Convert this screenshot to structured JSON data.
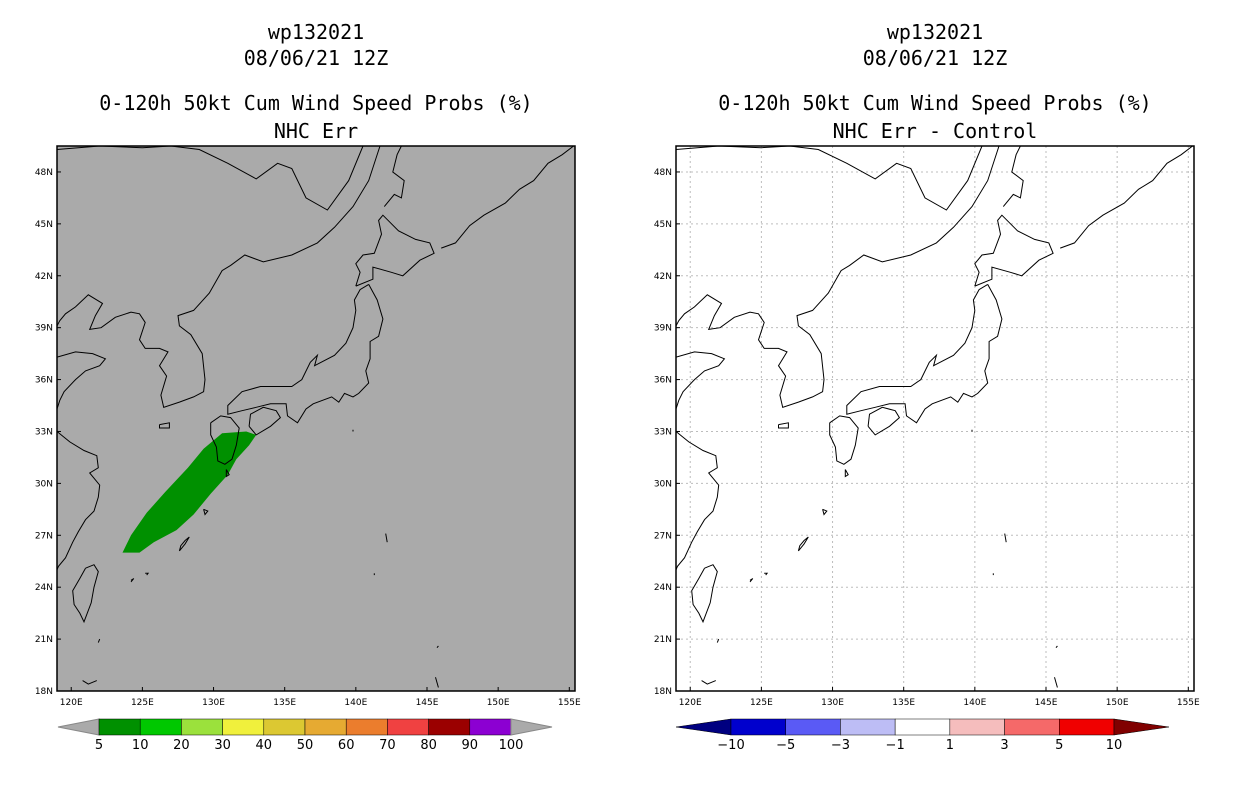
{
  "left": {
    "storm": "wp132021",
    "datetime": "08/06/21 12Z",
    "product": "0-120h 50kt Cum Wind Speed Probs (%)",
    "subtitle": "NHC Err",
    "background_color": "#aaaaaa",
    "colorbar": {
      "colors": [
        "#009000",
        "#00c800",
        "#9be13c",
        "#f0f03c",
        "#dcc832",
        "#e6aa32",
        "#eb7d2d",
        "#f04141",
        "#9b0000",
        "#8c00d2"
      ],
      "labels": [
        "5",
        "10",
        "20",
        "30",
        "40",
        "50",
        "60",
        "70",
        "80",
        "90",
        "100"
      ],
      "end_color": "#aaaaaa"
    }
  },
  "right": {
    "storm": "wp132021",
    "datetime": "08/06/21 12Z",
    "product": "0-120h 50kt Cum Wind Speed Probs (%)",
    "subtitle": "NHC Err - Control",
    "background_color": "#ffffff",
    "colorbar": {
      "colors": [
        "#0000cd",
        "#5a5af5",
        "#bdbdf5",
        "#ffffff",
        "#f5bdbd",
        "#f56969",
        "#f00000"
      ],
      "labels": [
        "-10",
        "-5",
        "-3",
        "-1",
        "1",
        "3",
        "5",
        "10"
      ],
      "low_end_color": "#000080",
      "high_end_color": "#800000"
    }
  },
  "axes": {
    "lat_labels": [
      "48N",
      "45N",
      "42N",
      "39N",
      "36N",
      "33N",
      "30N",
      "27N",
      "24N",
      "21N",
      "18N"
    ],
    "lon_labels": [
      "120E",
      "125E",
      "130E",
      "135E",
      "140E",
      "145E",
      "150E",
      "155E"
    ]
  },
  "probability_area": {
    "color": "#009000",
    "polygon_lonlat": [
      [
        123.6,
        26.0
      ],
      [
        124.8,
        26.0
      ],
      [
        125.8,
        26.6
      ],
      [
        127.4,
        27.3
      ],
      [
        128.6,
        28.2
      ],
      [
        129.8,
        29.4
      ],
      [
        131.0,
        30.5
      ],
      [
        131.6,
        31.4
      ],
      [
        132.5,
        32.2
      ],
      [
        133.0,
        32.8
      ],
      [
        132.3,
        33.0
      ],
      [
        130.6,
        32.9
      ],
      [
        129.3,
        32.0
      ],
      [
        128.2,
        30.9
      ],
      [
        126.6,
        29.5
      ],
      [
        125.3,
        28.3
      ],
      [
        124.2,
        27.0
      ]
    ]
  }
}
